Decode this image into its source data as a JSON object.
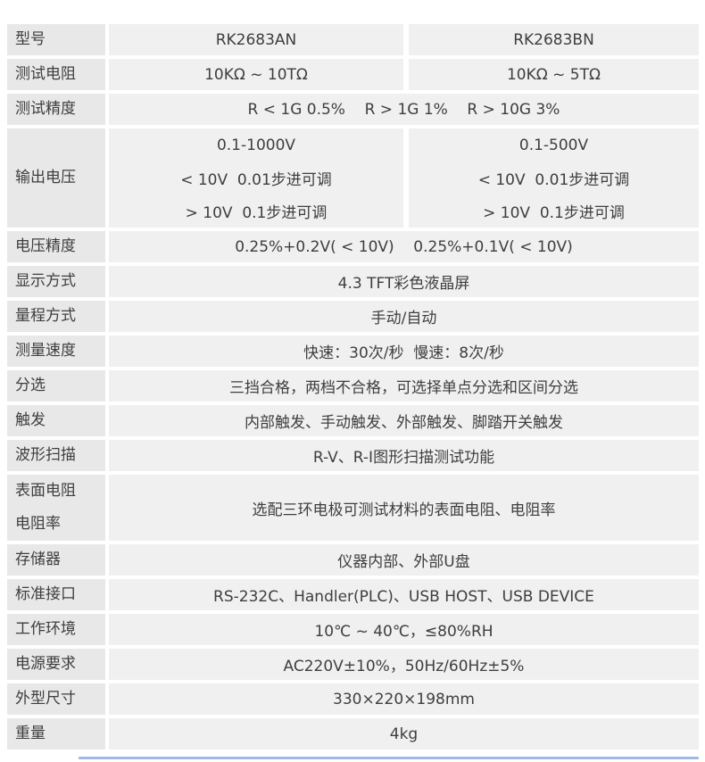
{
  "page": {
    "background": "#ffffff",
    "accent_line_color": "#9db9e2"
  },
  "table": {
    "label_col_bg": "#e9e8e8",
    "value_col_bg": "#f1f0f0",
    "text_color": "#3e3e3e",
    "models": [
      "RK2683AN",
      "RK2683BN"
    ],
    "rows": [
      {
        "label_lines": [
          "型号"
        ],
        "type": "split",
        "col_a_lines": [
          "RK2683AN"
        ],
        "col_b_lines": [
          "RK2683BN"
        ]
      },
      {
        "label_lines": [
          "测试电阻"
        ],
        "type": "split",
        "col_a_lines": [
          "10KΩ ~ 10TΩ"
        ],
        "col_b_lines": [
          "10KΩ ~ 5TΩ"
        ]
      },
      {
        "label_lines": [
          "测试精度"
        ],
        "type": "merged",
        "value": "R < 1G 0.5%    R > 1G 1%    R > 10G 3%"
      },
      {
        "label_lines": [
          "输出电压"
        ],
        "type": "split",
        "col_a_lines": [
          "0.1-1000V",
          "< 10V  0.01步进可调",
          "> 10V  0.1步进可调"
        ],
        "col_b_lines": [
          "0.1-500V",
          "< 10V  0.01步进可调",
          "> 10V  0.1步进可调"
        ]
      },
      {
        "label_lines": [
          "电压精度"
        ],
        "type": "merged",
        "value": "0.25%+0.2V( < 10V)    0.25%+0.1V( < 10V)"
      },
      {
        "label_lines": [
          "显示方式"
        ],
        "type": "merged",
        "value": "4.3 TFT彩色液晶屏"
      },
      {
        "label_lines": [
          "量程方式"
        ],
        "type": "merged",
        "value": "手动/自动"
      },
      {
        "label_lines": [
          "测量速度"
        ],
        "type": "merged",
        "value": "快速：30次/秒  慢速：8次/秒"
      },
      {
        "label_lines": [
          "分选"
        ],
        "type": "merged",
        "value": "三挡合格，两档不合格，可选择单点分选和区间分选"
      },
      {
        "label_lines": [
          "触发"
        ],
        "type": "merged",
        "value": "内部触发、手动触发、外部触发、脚踏开关触发"
      },
      {
        "label_lines": [
          "波形扫描"
        ],
        "type": "merged",
        "value": "R-V、R-I图形扫描测试功能"
      },
      {
        "label_lines": [
          "表面电阻",
          "电阻率"
        ],
        "type": "merged",
        "value": "选配三环电极可测试材料的表面电阻、电阻率"
      },
      {
        "label_lines": [
          "存储器"
        ],
        "type": "merged",
        "value": "仪器内部、外部U盘"
      },
      {
        "label_lines": [
          "标准接口"
        ],
        "type": "merged",
        "value": "RS-232C、Handler(PLC)、USB HOST、USB DEVICE"
      },
      {
        "label_lines": [
          "工作环境"
        ],
        "type": "merged",
        "value": "10℃ ~ 40℃，≤80%RH"
      },
      {
        "label_lines": [
          "电源要求"
        ],
        "type": "merged",
        "value": "AC220V±10%，50Hz/60Hz±5%"
      },
      {
        "label_lines": [
          "外型尺寸"
        ],
        "type": "merged",
        "value": "330×220×198mm"
      },
      {
        "label_lines": [
          "重量"
        ],
        "type": "merged",
        "value": "4kg"
      }
    ]
  }
}
